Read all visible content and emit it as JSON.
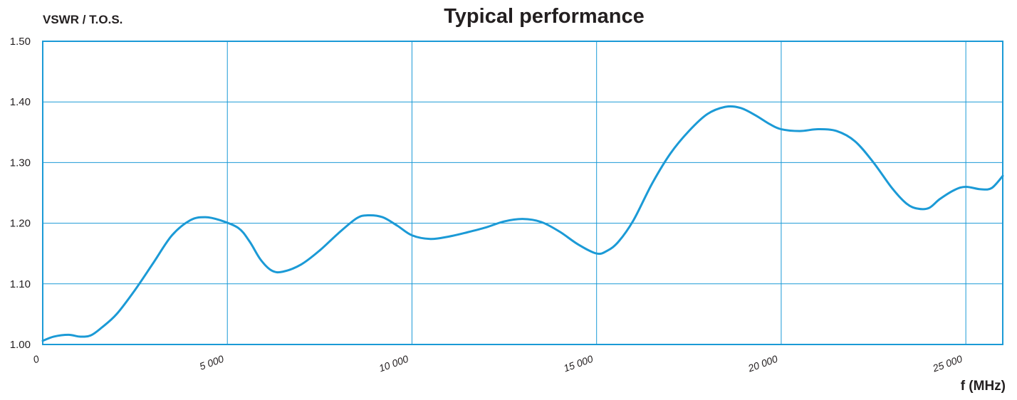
{
  "chart_data": {
    "type": "line",
    "title": "Typical performance",
    "ylabel": "VSWR / T.O.S.",
    "xlabel": "f (MHz)",
    "xlim": [
      0,
      26000
    ],
    "ylim": [
      1.0,
      1.5
    ],
    "grid": true,
    "x_ticks": [
      0,
      5000,
      10000,
      15000,
      20000,
      25000
    ],
    "x_tick_labels": [
      "0",
      "5 000",
      "10 000",
      "15 000",
      "20 000",
      "25 000"
    ],
    "y_ticks": [
      1.0,
      1.1,
      1.2,
      1.3,
      1.4,
      1.5
    ],
    "y_tick_labels": [
      "1.00",
      "1.10",
      "1.20",
      "1.30",
      "1.40",
      "1.50"
    ],
    "series": [
      {
        "x": [
          0,
          300,
          700,
          1000,
          1300,
          1600,
          2000,
          2500,
          3000,
          3500,
          4000,
          4400,
          4800,
          5300,
          5600,
          5900,
          6200,
          6500,
          7000,
          7500,
          8000,
          8500,
          8800,
          9200,
          9600,
          10000,
          10500,
          11000,
          11500,
          12000,
          12500,
          13000,
          13500,
          14000,
          14500,
          15000,
          15300,
          15600,
          16000,
          16500,
          17000,
          17500,
          18000,
          18500,
          18900,
          19300,
          19700,
          20000,
          20500,
          21000,
          21500,
          22000,
          22500,
          23000,
          23400,
          23700,
          24000,
          24300,
          24700,
          25000,
          25400,
          25700,
          26000
        ],
        "y": [
          1.006,
          1.013,
          1.016,
          1.013,
          1.015,
          1.028,
          1.05,
          1.09,
          1.135,
          1.18,
          1.205,
          1.21,
          1.205,
          1.192,
          1.17,
          1.14,
          1.122,
          1.12,
          1.132,
          1.155,
          1.183,
          1.208,
          1.213,
          1.21,
          1.196,
          1.18,
          1.174,
          1.178,
          1.185,
          1.193,
          1.203,
          1.207,
          1.202,
          1.186,
          1.165,
          1.15,
          1.155,
          1.17,
          1.205,
          1.265,
          1.315,
          1.352,
          1.38,
          1.392,
          1.39,
          1.378,
          1.363,
          1.355,
          1.352,
          1.355,
          1.352,
          1.335,
          1.3,
          1.258,
          1.232,
          1.224,
          1.225,
          1.24,
          1.255,
          1.26,
          1.256,
          1.258,
          1.278
        ]
      }
    ],
    "colors": {
      "line": "#1b9ad6",
      "grid": "#1b9ad6",
      "frame": "#1b9ad6",
      "text": "#231f20"
    }
  }
}
